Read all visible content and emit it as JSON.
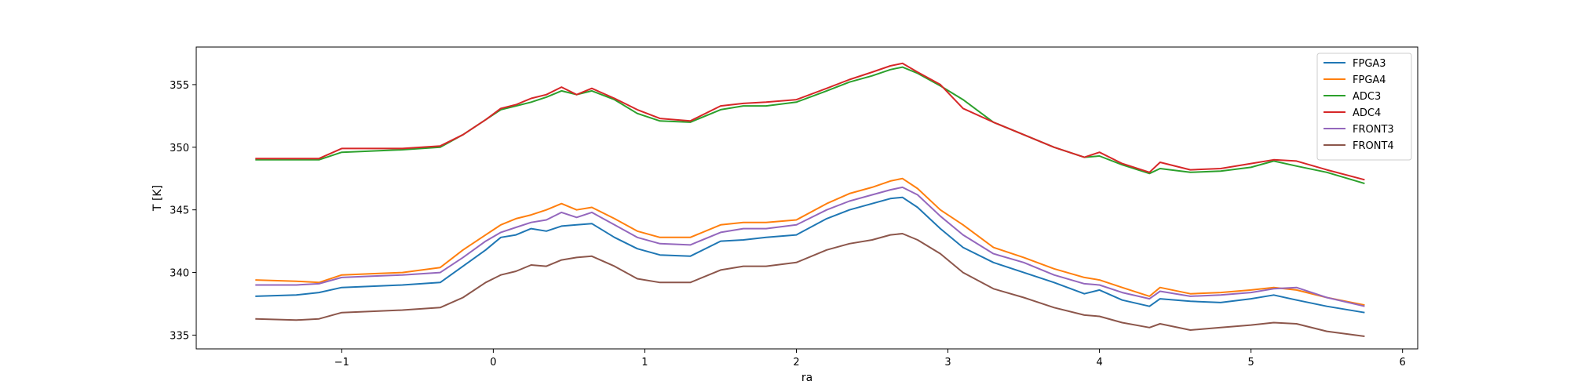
{
  "chart_data": {
    "type": "line",
    "title": "",
    "xlabel": "ra",
    "ylabel": "T [K]",
    "xlim": [
      -1.96,
      6.1
    ],
    "ylim": [
      333.9,
      358.0
    ],
    "xticks": [
      -1,
      0,
      1,
      2,
      3,
      4,
      5,
      6
    ],
    "xtick_labels": [
      "−1",
      "0",
      "1",
      "2",
      "3",
      "4",
      "5",
      "6"
    ],
    "yticks": [
      335,
      340,
      345,
      350,
      355
    ],
    "ytick_labels": [
      "335",
      "340",
      "345",
      "350",
      "355"
    ],
    "grid": false,
    "legend_position": "top-right",
    "series": [
      {
        "name": "FPGA3",
        "color": "#1f77b4",
        "x": [
          -1.57,
          -1.3,
          -1.15,
          -1.0,
          -0.8,
          -0.6,
          -0.35,
          -0.2,
          -0.05,
          0.05,
          0.15,
          0.25,
          0.35,
          0.45,
          0.55,
          0.65,
          0.8,
          0.95,
          1.1,
          1.3,
          1.5,
          1.65,
          1.8,
          2.0,
          2.2,
          2.35,
          2.5,
          2.62,
          2.7,
          2.8,
          2.95,
          3.1,
          3.3,
          3.5,
          3.7,
          3.9,
          4.0,
          4.15,
          4.33,
          4.4,
          4.6,
          4.8,
          5.0,
          5.15,
          5.3,
          5.5,
          5.75
        ],
        "values": [
          338.1,
          338.2,
          338.4,
          338.8,
          338.9,
          339.0,
          339.2,
          340.5,
          341.8,
          342.8,
          343.0,
          343.5,
          343.3,
          343.7,
          343.8,
          343.9,
          342.8,
          341.9,
          341.4,
          341.3,
          342.5,
          342.6,
          342.8,
          343.0,
          344.3,
          345.0,
          345.5,
          345.9,
          346.0,
          345.2,
          343.5,
          342.0,
          340.8,
          340.0,
          339.2,
          338.3,
          338.6,
          337.8,
          337.3,
          337.9,
          337.7,
          337.6,
          337.9,
          338.2,
          337.8,
          337.3,
          336.8
        ]
      },
      {
        "name": "FPGA4",
        "color": "#ff7f0e",
        "x": [
          -1.57,
          -1.3,
          -1.15,
          -1.0,
          -0.8,
          -0.6,
          -0.35,
          -0.2,
          -0.05,
          0.05,
          0.15,
          0.25,
          0.35,
          0.45,
          0.55,
          0.65,
          0.8,
          0.95,
          1.1,
          1.3,
          1.5,
          1.65,
          1.8,
          2.0,
          2.2,
          2.35,
          2.5,
          2.62,
          2.7,
          2.8,
          2.95,
          3.1,
          3.3,
          3.5,
          3.7,
          3.9,
          4.0,
          4.15,
          4.33,
          4.4,
          4.6,
          4.8,
          5.0,
          5.15,
          5.3,
          5.5,
          5.75
        ],
        "values": [
          339.4,
          339.3,
          339.2,
          339.8,
          339.9,
          340.0,
          340.4,
          341.8,
          343.0,
          343.8,
          344.3,
          344.6,
          345.0,
          345.5,
          345.0,
          345.2,
          344.3,
          343.3,
          342.8,
          342.8,
          343.8,
          344.0,
          344.0,
          344.2,
          345.5,
          346.3,
          346.8,
          347.3,
          347.5,
          346.7,
          345.0,
          343.8,
          342.0,
          341.2,
          340.3,
          339.6,
          339.4,
          338.8,
          338.1,
          338.8,
          338.3,
          338.4,
          338.6,
          338.8,
          338.6,
          338.0,
          337.4
        ]
      },
      {
        "name": "ADC3",
        "color": "#2ca02c",
        "x": [
          -1.57,
          -1.3,
          -1.15,
          -1.0,
          -0.8,
          -0.6,
          -0.35,
          -0.2,
          -0.05,
          0.05,
          0.15,
          0.25,
          0.35,
          0.45,
          0.55,
          0.65,
          0.8,
          0.95,
          1.1,
          1.3,
          1.5,
          1.65,
          1.8,
          2.0,
          2.2,
          2.35,
          2.5,
          2.62,
          2.7,
          2.8,
          2.95,
          3.1,
          3.3,
          3.5,
          3.7,
          3.9,
          4.0,
          4.15,
          4.33,
          4.4,
          4.6,
          4.8,
          5.0,
          5.15,
          5.3,
          5.5,
          5.75
        ],
        "values": [
          349.0,
          349.0,
          349.0,
          349.6,
          349.7,
          349.8,
          350.0,
          351.0,
          352.2,
          353.0,
          353.3,
          353.6,
          354.0,
          354.5,
          354.2,
          354.5,
          353.8,
          352.7,
          352.1,
          352.0,
          353.0,
          353.3,
          353.3,
          353.6,
          354.5,
          355.2,
          355.7,
          356.2,
          356.4,
          355.9,
          354.9,
          353.8,
          352.0,
          351.0,
          350.0,
          349.2,
          349.3,
          348.6,
          347.9,
          348.3,
          348.0,
          348.1,
          348.4,
          348.9,
          348.5,
          348.0,
          347.1
        ]
      },
      {
        "name": "ADC4",
        "color": "#d62728",
        "x": [
          -1.57,
          -1.3,
          -1.15,
          -1.0,
          -0.8,
          -0.6,
          -0.35,
          -0.2,
          -0.05,
          0.05,
          0.15,
          0.25,
          0.35,
          0.45,
          0.55,
          0.65,
          0.8,
          0.95,
          1.1,
          1.3,
          1.5,
          1.65,
          1.8,
          2.0,
          2.2,
          2.35,
          2.5,
          2.62,
          2.7,
          2.8,
          2.95,
          3.1,
          3.3,
          3.5,
          3.7,
          3.9,
          4.0,
          4.15,
          4.33,
          4.4,
          4.6,
          4.8,
          5.0,
          5.15,
          5.3,
          5.5,
          5.75
        ],
        "values": [
          349.1,
          349.1,
          349.1,
          349.9,
          349.9,
          349.9,
          350.1,
          351.0,
          352.2,
          353.1,
          353.4,
          353.9,
          354.2,
          354.8,
          354.2,
          354.7,
          353.9,
          353.0,
          352.3,
          352.1,
          353.3,
          353.5,
          353.6,
          353.8,
          354.7,
          355.4,
          356.0,
          356.5,
          356.7,
          356.0,
          355.0,
          353.1,
          352.0,
          351.0,
          350.0,
          349.2,
          349.6,
          348.7,
          348.0,
          348.8,
          348.2,
          348.3,
          348.7,
          349.0,
          348.9,
          348.2,
          347.4
        ]
      },
      {
        "name": "FRONT3",
        "color": "#9467bd",
        "x": [
          -1.57,
          -1.3,
          -1.15,
          -1.0,
          -0.8,
          -0.6,
          -0.35,
          -0.2,
          -0.05,
          0.05,
          0.15,
          0.25,
          0.35,
          0.45,
          0.55,
          0.65,
          0.8,
          0.95,
          1.1,
          1.3,
          1.5,
          1.65,
          1.8,
          2.0,
          2.2,
          2.35,
          2.5,
          2.62,
          2.7,
          2.8,
          2.95,
          3.1,
          3.3,
          3.5,
          3.7,
          3.9,
          4.0,
          4.15,
          4.33,
          4.4,
          4.6,
          4.8,
          5.0,
          5.15,
          5.3,
          5.5,
          5.75
        ],
        "values": [
          339.0,
          339.0,
          339.1,
          339.6,
          339.7,
          339.8,
          340.0,
          341.2,
          342.5,
          343.2,
          343.6,
          344.0,
          344.2,
          344.8,
          344.4,
          344.8,
          343.8,
          342.8,
          342.3,
          342.2,
          343.2,
          343.5,
          343.5,
          343.8,
          345.0,
          345.7,
          346.2,
          346.6,
          346.8,
          346.2,
          344.5,
          343.0,
          341.5,
          340.8,
          339.8,
          339.1,
          339.0,
          338.4,
          337.9,
          338.5,
          338.1,
          338.2,
          338.4,
          338.7,
          338.8,
          338.0,
          337.3
        ]
      },
      {
        "name": "FRONT4",
        "color": "#8c564b",
        "x": [
          -1.57,
          -1.3,
          -1.15,
          -1.0,
          -0.8,
          -0.6,
          -0.35,
          -0.2,
          -0.05,
          0.05,
          0.15,
          0.25,
          0.35,
          0.45,
          0.55,
          0.65,
          0.8,
          0.95,
          1.1,
          1.3,
          1.5,
          1.65,
          1.8,
          2.0,
          2.2,
          2.35,
          2.5,
          2.62,
          2.7,
          2.8,
          2.95,
          3.1,
          3.3,
          3.5,
          3.7,
          3.9,
          4.0,
          4.15,
          4.33,
          4.4,
          4.6,
          4.8,
          5.0,
          5.15,
          5.3,
          5.5,
          5.75
        ],
        "values": [
          336.3,
          336.2,
          336.3,
          336.8,
          336.9,
          337.0,
          337.2,
          338.0,
          339.2,
          339.8,
          340.1,
          340.6,
          340.5,
          341.0,
          341.2,
          341.3,
          340.5,
          339.5,
          339.2,
          339.2,
          340.2,
          340.5,
          340.5,
          340.8,
          341.8,
          342.3,
          342.6,
          343.0,
          343.1,
          342.6,
          341.5,
          340.0,
          338.7,
          338.0,
          337.2,
          336.6,
          336.5,
          336.0,
          335.6,
          335.9,
          335.4,
          335.6,
          335.8,
          336.0,
          335.9,
          335.3,
          334.9
        ]
      }
    ]
  }
}
